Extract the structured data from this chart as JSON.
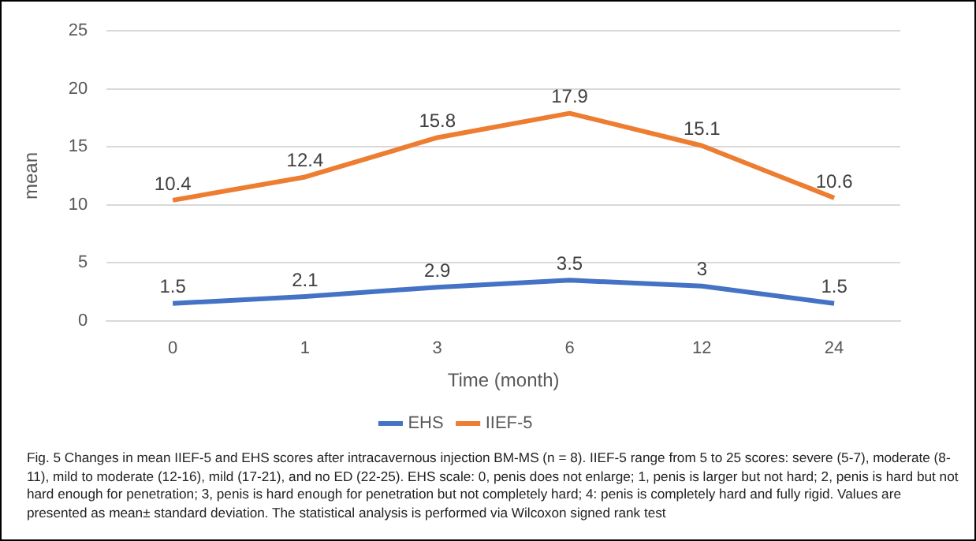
{
  "chart_data": {
    "type": "line",
    "xlabel": "Time (month)",
    "ylabel": "mean",
    "categories": [
      "0",
      "1",
      "3",
      "6",
      "12",
      "24"
    ],
    "series": [
      {
        "name": "EHS",
        "color": "#4472c4",
        "values": [
          1.5,
          2.1,
          2.9,
          3.5,
          3,
          1.5
        ]
      },
      {
        "name": "IIEF-5",
        "color": "#ed7d31",
        "values": [
          10.4,
          12.4,
          15.8,
          17.9,
          15.1,
          10.6
        ]
      }
    ],
    "ylim": [
      0,
      25
    ],
    "yticks": [
      0,
      5,
      10,
      15,
      20,
      25
    ],
    "grid": "y",
    "legend": "bottom",
    "marker": "none",
    "line_style": "solid",
    "data_labels": true,
    "annotations": [
      "Fig. 5 Changes in mean IIEF-5 and EHS scores after intracavernous injection BM-MS (n = 8). IIEF-5 range from 5 to 25 scores: severe (5-7), moderate (8-11), mild to moderate (12-16), mild (17-21), and no ED (22-25). EHS scale: 0, penis does not enlarge; 1, penis is larger but not hard; 2, penis is hard but not hard enough for penetration; 3, penis is hard enough for penetration but not completely hard; 4: penis is completely hard and fully rigid. Values are presented as mean± standard deviation. The statistical analysis is performed via Wilcoxon signed rank test"
    ]
  }
}
